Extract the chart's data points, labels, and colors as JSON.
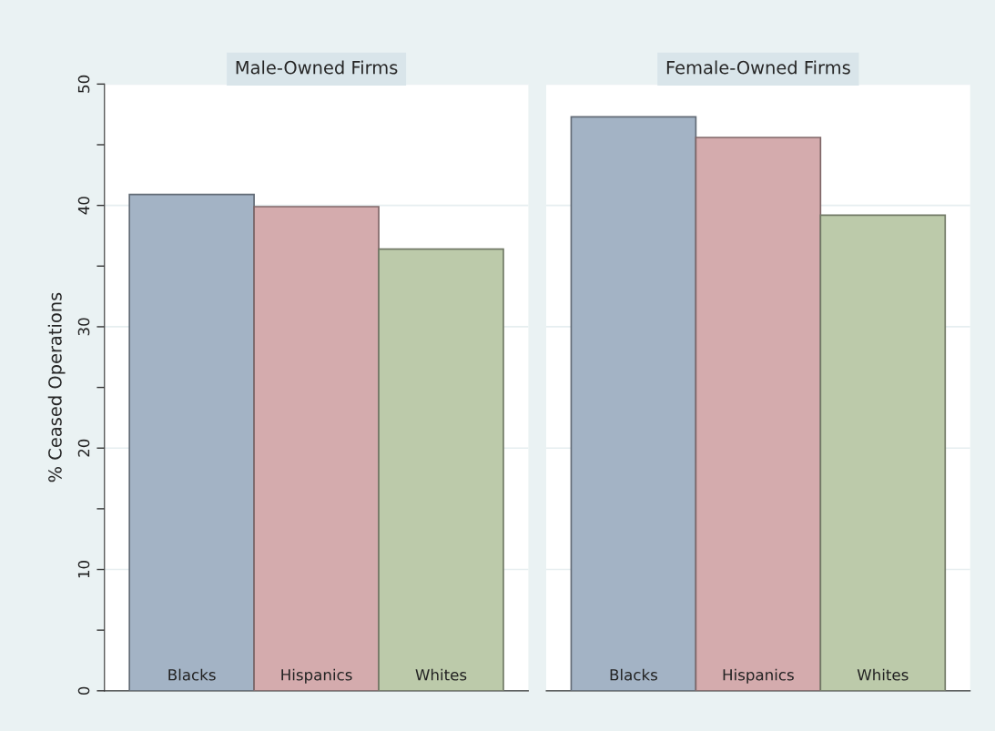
{
  "chart_data": [
    {
      "type": "bar",
      "title": "Male-Owned Firms",
      "ylabel": "% Ceased Operations",
      "categories": [
        "Blacks",
        "Hispanics",
        "Whites"
      ],
      "values": [
        40.9,
        39.9,
        36.4
      ],
      "colors": [
        "#a3b3c5",
        "#d4abad",
        "#bccaaa"
      ],
      "ylim": [
        0,
        50
      ],
      "yticks": [
        0,
        {
          "value": 5,
          "label": null
        },
        10,
        {
          "value": 15,
          "label": null
        },
        20,
        {
          "value": 25,
          "label": null
        },
        30,
        {
          "value": 35,
          "label": null
        },
        40,
        {
          "value": 45,
          "label": null
        },
        50
      ],
      "grid": "y"
    },
    {
      "type": "bar",
      "title": "Female-Owned Firms",
      "categories": [
        "Blacks",
        "Hispanics",
        "Whites"
      ],
      "values": [
        47.3,
        45.6,
        39.2
      ],
      "colors": [
        "#a3b3c5",
        "#d4abad",
        "#bccaaa"
      ],
      "ylim": [
        0,
        50
      ],
      "yticks": [
        0,
        10,
        20,
        30,
        40,
        50
      ],
      "grid": "y",
      "tick_labels": "x"
    }
  ]
}
